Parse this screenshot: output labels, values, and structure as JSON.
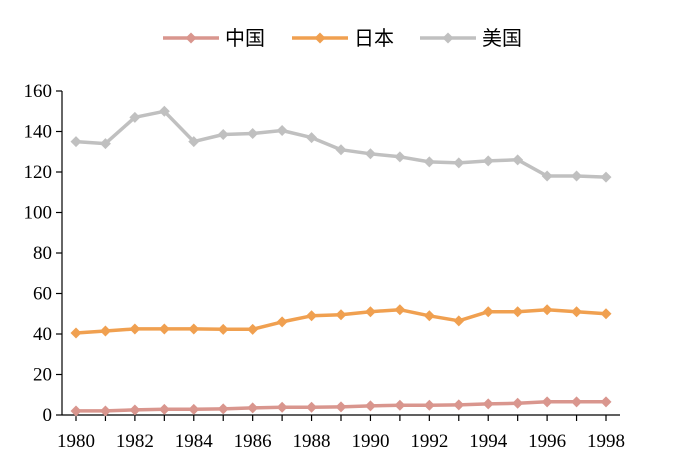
{
  "chart_data": {
    "type": "line",
    "title": "",
    "xlabel": "",
    "ylabel": "",
    "x": [
      1980,
      1981,
      1982,
      1983,
      1984,
      1985,
      1986,
      1987,
      1988,
      1989,
      1990,
      1991,
      1992,
      1993,
      1994,
      1995,
      1996,
      1997,
      1998
    ],
    "x_tick_labels": [
      "1980",
      "1982",
      "1984",
      "1986",
      "1988",
      "1990",
      "1992",
      "1994",
      "1996",
      "1998"
    ],
    "y_tick_labels": [
      "0",
      "20",
      "40",
      "60",
      "80",
      "100",
      "120",
      "140",
      "160"
    ],
    "ylim": [
      0,
      160
    ],
    "xlim": [
      1980,
      1998
    ],
    "grid": false,
    "legend_position": "top-center",
    "series": [
      {
        "name": "中国",
        "color": "#D9968E",
        "marker": "diamond",
        "values": [
          2,
          2,
          2.5,
          2.8,
          2.8,
          3,
          3.5,
          3.8,
          3.8,
          4,
          4.5,
          4.8,
          4.8,
          5,
          5.5,
          5.8,
          6.5,
          6.5,
          6.5
        ]
      },
      {
        "name": "日本",
        "color": "#F0A050",
        "marker": "diamond",
        "values": [
          40.5,
          41.5,
          42.5,
          42.5,
          42.5,
          42.3,
          42.3,
          46,
          49,
          49.5,
          51,
          52,
          49,
          46.5,
          51,
          51,
          52,
          51,
          50
        ]
      },
      {
        "name": "美国",
        "color": "#C0C0C0",
        "marker": "diamond",
        "values": [
          135,
          134,
          147,
          150,
          135,
          138.5,
          139,
          140.5,
          137,
          131,
          129,
          127.5,
          125,
          124.5,
          125.5,
          126,
          118,
          118,
          117.5
        ]
      }
    ]
  }
}
